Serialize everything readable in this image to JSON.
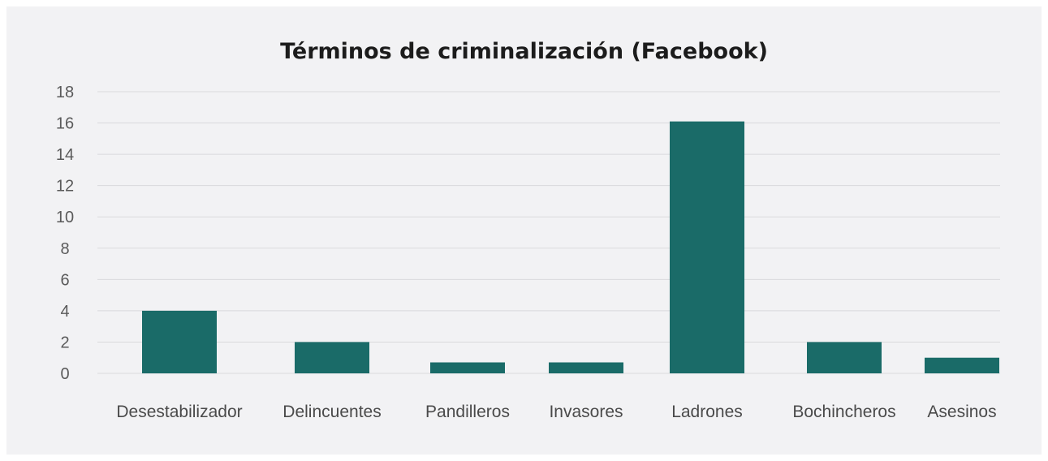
{
  "chart_data": {
    "type": "bar",
    "title": "Términos de criminalización (Facebook)",
    "xlabel": "",
    "ylabel": "",
    "categories": [
      "Desestabilizador",
      "Delincuentes",
      "Pandilleros",
      "Invasores",
      "Ladrones",
      "Bochincheros",
      "Asesinos"
    ],
    "values": [
      4,
      2,
      0.7,
      0.7,
      16.1,
      2,
      1
    ],
    "ylim": [
      0,
      18
    ],
    "yticks": [
      0,
      2,
      4,
      6,
      8,
      10,
      12,
      14,
      16,
      18
    ],
    "grid": true,
    "legend": "none",
    "bar_color": "#1a6b68",
    "grid_color": "#d9d9dc",
    "background": "#f2f2f4"
  }
}
